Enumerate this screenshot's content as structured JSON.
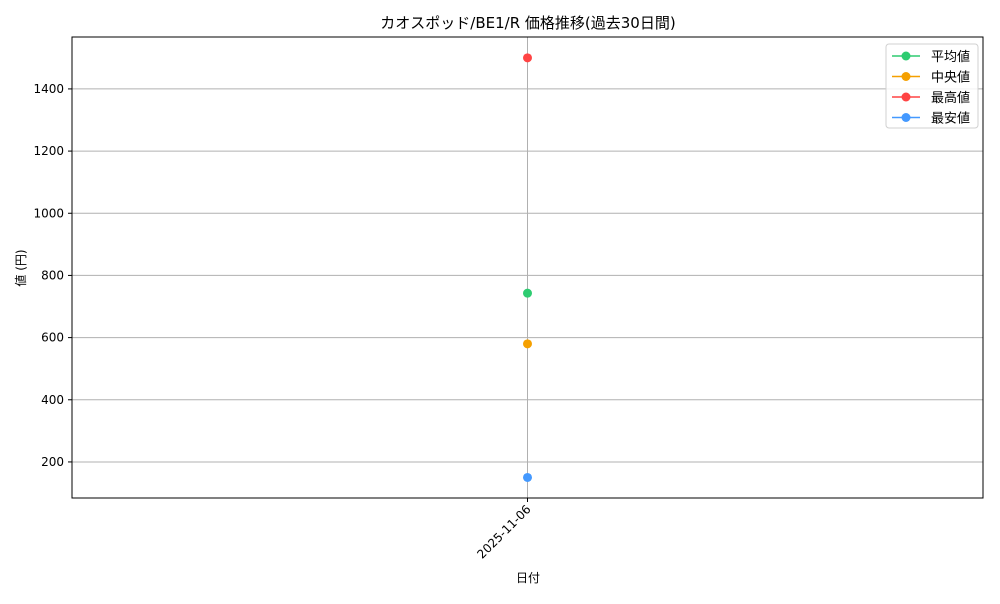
{
  "chart_data": {
    "type": "line",
    "title": "カオスポッド/BE1/R 価格推移(過去30日間)",
    "xlabel": "日付",
    "ylabel": "値 (円)",
    "x": [
      "2025-11-06"
    ],
    "ylim": [
      84,
      1567
    ],
    "yticks": [
      200,
      400,
      600,
      800,
      1000,
      1200,
      1400
    ],
    "grid": true,
    "legend_position": "top-right",
    "series": [
      {
        "name": "平均値",
        "color": "#2ecc71",
        "values": [
          743
        ]
      },
      {
        "name": "中央値",
        "color": "#f5a000",
        "values": [
          580
        ]
      },
      {
        "name": "最高値",
        "color": "#ff4444",
        "values": [
          1500
        ]
      },
      {
        "name": "最安値",
        "color": "#4499ff",
        "values": [
          150
        ]
      }
    ]
  }
}
